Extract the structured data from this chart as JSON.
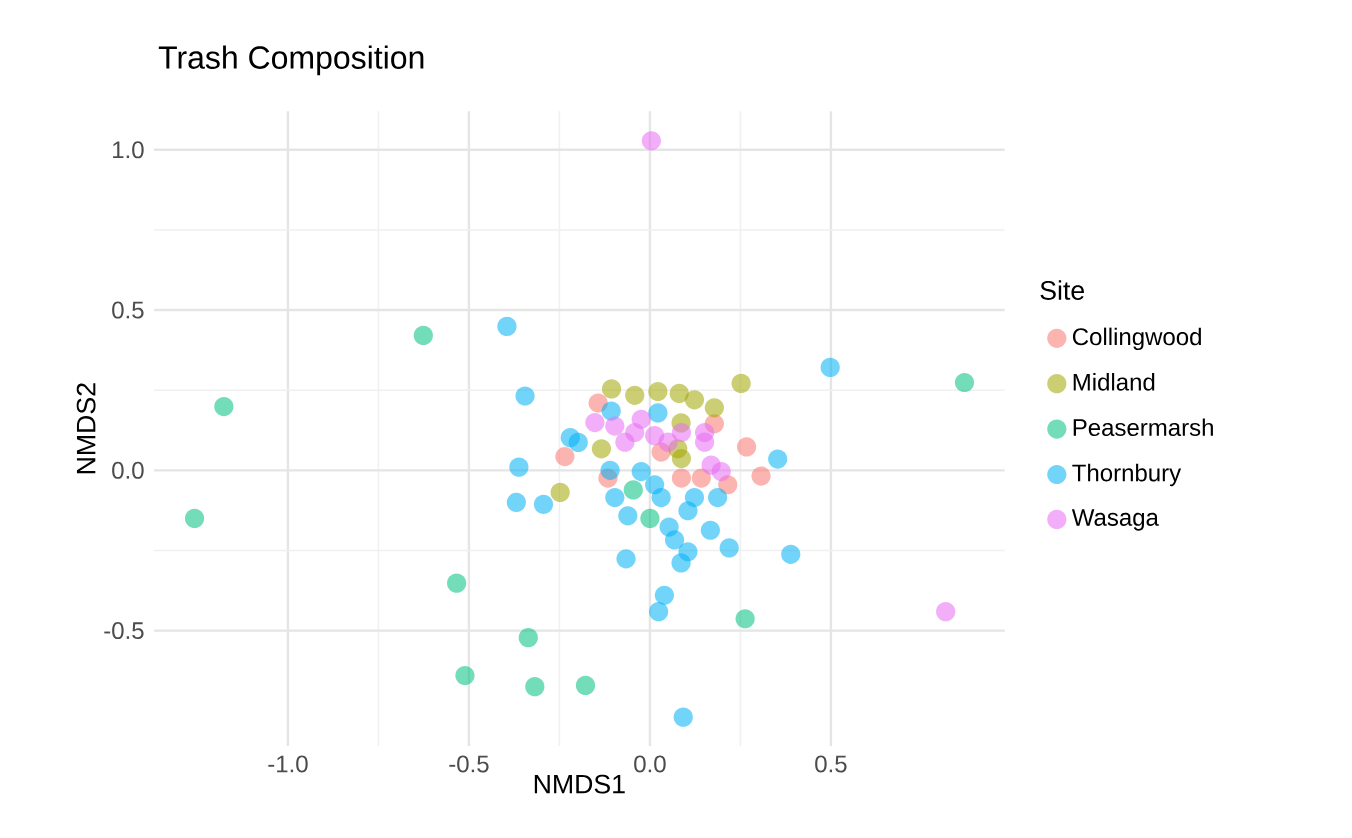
{
  "chart_data": {
    "type": "scatter",
    "title": "Trash Composition",
    "xlabel": "NMDS1",
    "ylabel": "NMDS2",
    "legend_title": "Site",
    "legend": "right",
    "grid": true,
    "marker": "circle",
    "xlim": [
      -1.37,
      0.98
    ],
    "ylim": [
      -0.86,
      1.12
    ],
    "xticks": [
      {
        "value": -1.0,
        "label": "-1.0"
      },
      {
        "value": -0.5,
        "label": "-0.5"
      },
      {
        "value": 0.0,
        "label": "0.0"
      },
      {
        "value": 0.5,
        "label": "0.5"
      }
    ],
    "yticks": [
      {
        "value": -0.5,
        "label": "-0.5"
      },
      {
        "value": 0.0,
        "label": "0.0"
      },
      {
        "value": 0.5,
        "label": "0.5"
      },
      {
        "value": 1.0,
        "label": "1.0"
      }
    ],
    "series": [
      {
        "name": "Collingwood",
        "color": "#F8766D",
        "x": [
          -0.143,
          -0.235,
          0.267,
          0.307,
          0.178,
          -0.116,
          0.142,
          0.178,
          0.215,
          0.087,
          0.031
        ],
        "values": [
          0.21,
          0.043,
          0.073,
          -0.018,
          0.145,
          -0.024,
          -0.024,
          null,
          -0.045,
          -0.024,
          0.057
        ]
      },
      {
        "name": "Midland",
        "color": "#A3A500",
        "x": [
          -0.106,
          -0.042,
          0.022,
          0.081,
          0.123,
          0.178,
          0.252,
          -0.248,
          0.077,
          0.087,
          -0.134,
          0.086,
          0.077
        ],
        "values": [
          0.254,
          0.234,
          0.246,
          0.24,
          0.22,
          0.195,
          0.271,
          -0.069,
          null,
          0.037,
          0.067,
          0.148,
          0.067
        ]
      },
      {
        "name": "Peasermarsh",
        "color": "#00BF7D",
        "x": [
          -0.626,
          -1.177,
          -1.258,
          -0.534,
          -0.336,
          -0.511,
          -0.318,
          -0.178,
          0.263,
          0.869,
          0.0,
          -0.046
        ],
        "values": [
          0.421,
          0.199,
          -0.15,
          -0.352,
          -0.522,
          -0.64,
          -0.675,
          -0.671,
          -0.463,
          0.274,
          -0.15,
          -0.061
        ]
      },
      {
        "name": "Thornbury",
        "color": "#00B0F6",
        "x": [
          -0.395,
          -0.345,
          0.498,
          0.353,
          -0.362,
          -0.369,
          -0.294,
          -0.22,
          -0.107,
          -0.11,
          0.389,
          0.219,
          0.167,
          -0.066,
          0.04,
          0.024,
          0.092,
          0.086,
          0.105,
          0.068,
          0.053,
          -0.061,
          -0.097,
          0.013,
          0.031,
          0.105,
          0.123,
          -0.024,
          0.187,
          0.022,
          -0.198
        ],
        "values": [
          0.449,
          0.232,
          0.321,
          0.035,
          0.01,
          -0.1,
          -0.106,
          0.102,
          0.185,
          0.0,
          -0.262,
          -0.242,
          -0.187,
          -0.276,
          -0.39,
          -0.441,
          -0.77,
          -0.289,
          -0.254,
          -0.217,
          -0.177,
          -0.142,
          -0.085,
          -0.045,
          -0.085,
          -0.126,
          -0.085,
          -0.004,
          -0.085,
          0.179,
          0.087
        ]
      },
      {
        "name": "Wasaga",
        "color": "#E76BF3",
        "x": [
          0.004,
          0.817,
          -0.152,
          -0.097,
          -0.042,
          0.013,
          -0.024,
          0.05,
          -0.069,
          0.151,
          0.169,
          0.197,
          0.087,
          0.151
        ],
        "values": [
          1.028,
          -0.441,
          0.149,
          0.138,
          0.118,
          0.108,
          0.159,
          0.088,
          0.088,
          0.088,
          0.016,
          -0.004,
          0.118,
          0.118
        ]
      }
    ]
  }
}
